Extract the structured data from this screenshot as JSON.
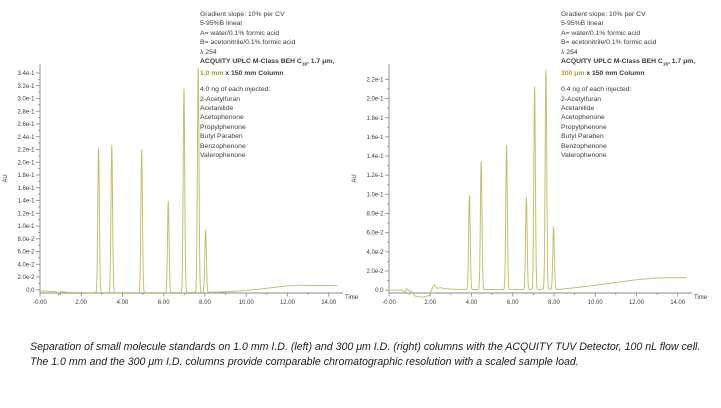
{
  "colors": {
    "trace": "#c3c169",
    "highlight": "#a7a12a",
    "text": "#3c3c3c",
    "axis": "#8a8a8a",
    "caption": "#1e1e1e"
  },
  "charts": [
    {
      "side": "left",
      "conditions": [
        "Gradient slope: 10% per CV",
        "5-95%B linear",
        "A= water/0.1% formic acid",
        "B= acetonitrile/0.1% formic acid",
        "λ 254"
      ],
      "column": {
        "pre": "ACQUITY UPLC M-Class BEH C",
        "sub": "18",
        "post": ", 1.7 μm,",
        "highlight": "1.0 mm",
        "rest": " x 150 mm Column"
      },
      "injection": "4.0 ng of each injected:",
      "analytes": [
        "2-Acetylfuran",
        "Acetanilide",
        "Acetophenone",
        "Propylphenone",
        "Butyl Paraben",
        "Benzophenone",
        "Valerophenone"
      ],
      "chart_data": {
        "type": "line",
        "xlabel": "Time",
        "ylabel": "AU",
        "xlim": [
          0,
          14.45
        ],
        "ylim": [
          -0.005,
          0.354
        ],
        "x_ticks": {
          "values": [
            0,
            2,
            4,
            6,
            8,
            10,
            12,
            14
          ],
          "labels": [
            "-0.00",
            "2.00",
            "4.00",
            "6.00",
            "8.00",
            "10.00",
            "12.00",
            "14.00"
          ],
          "minor": [
            1,
            3,
            5,
            7,
            9,
            11,
            13
          ]
        },
        "y_ticks": {
          "step": 0.02,
          "max": 0.34,
          "labels": [
            "0.0",
            "2.0e-2",
            "4.0e-2",
            "6.0e-2",
            "8.0e-2",
            "1.0e-1",
            "1.2e-1",
            "1.4e-1",
            "1.6e-1",
            "1.8e-1",
            "2.0e-1",
            "2.2e-1",
            "2.4e-1",
            "2.6e-1",
            "2.8e-1",
            "3.0e-1",
            "3.2e-1",
            "3.4e-1"
          ]
        },
        "peak_sigma": 0.038,
        "peaks": [
          {
            "name": "2-Acetylfuran",
            "time": 2.84,
            "height": 0.221
          },
          {
            "name": "Acetanilide",
            "time": 3.48,
            "height": 0.227
          },
          {
            "name": "Acetophenone",
            "time": 4.93,
            "height": 0.219
          },
          {
            "name": "Propylphenone",
            "time": 6.22,
            "height": 0.139
          },
          {
            "name": "Butyl Paraben",
            "time": 6.98,
            "height": 0.315
          },
          {
            "name": "Benzophenone",
            "time": 7.67,
            "height": 0.348
          },
          {
            "name": "Valerophenone",
            "time": 8.03,
            "height": 0.094
          }
        ],
        "baseline": [
          [
            0,
            -0.002
          ],
          [
            0.55,
            -0.0025
          ],
          [
            0.8,
            -0.003
          ],
          [
            0.9,
            -0.0085
          ],
          [
            1.0,
            -0.0025
          ],
          [
            1.3,
            -0.004
          ],
          [
            2.5,
            -0.0045
          ],
          [
            5.0,
            -0.0045
          ],
          [
            8.0,
            -0.004
          ],
          [
            8.8,
            -0.0035
          ],
          [
            9.6,
            -0.002
          ],
          [
            10.5,
            0.0005
          ],
          [
            11.4,
            0.004
          ],
          [
            12.0,
            0.0062
          ],
          [
            12.6,
            0.0072
          ],
          [
            13.4,
            0.0068
          ],
          [
            14.42,
            0.0066
          ]
        ]
      }
    },
    {
      "side": "right",
      "conditions": [
        "Gradient slope: 10% per CV",
        "5-95%B linear",
        "A= water/0.1% formic acid",
        "B= acetonitrile/0.1% formic acid",
        "λ 254"
      ],
      "column": {
        "pre": "ACQUITY UPLC M-Class BEH C",
        "sub": "18",
        "post": ", 1.7 μm,",
        "highlight": "300 μm",
        "rest": " x 150 mm Column"
      },
      "injection": "0.4 ng of each injected:",
      "analytes": [
        "2-Acetylfuran",
        "Acetanilide",
        "Acetophenone",
        "Propylphenone",
        "Butyl Paraben",
        "Benzophenone",
        "Valerophenone"
      ],
      "chart_data": {
        "type": "line",
        "xlabel": "Time",
        "ylabel": "AU",
        "xlim": [
          0,
          14.45
        ],
        "ylim": [
          -0.003,
          0.236
        ],
        "x_ticks": {
          "values": [
            0,
            2,
            4,
            6,
            8,
            10,
            12,
            14
          ],
          "labels": [
            "-0.00",
            "2.00",
            "4.00",
            "6.00",
            "8.00",
            "10.00",
            "12.00",
            "14.00"
          ],
          "minor": [
            1,
            3,
            5,
            7,
            9,
            11,
            13
          ]
        },
        "y_ticks": {
          "step": 0.02,
          "max": 0.22,
          "labels": [
            "0.0",
            "2.0e-2",
            "4.0e-2",
            "6.0e-2",
            "8.0e-2",
            "1.0e-1",
            "1.2e-1",
            "1.4e-1",
            "1.6e-1",
            "1.8e-1",
            "2.0e-1",
            "2.2e-1"
          ]
        },
        "peak_sigma": 0.038,
        "peaks": [
          {
            "name": "2-Acetylfuran",
            "time": 3.9,
            "height": 0.099
          },
          {
            "name": "Acetanilide",
            "time": 4.47,
            "height": 0.134
          },
          {
            "name": "Acetophenone",
            "time": 5.7,
            "height": 0.151
          },
          {
            "name": "Propylphenone",
            "time": 6.66,
            "height": 0.097
          },
          {
            "name": "Butyl Paraben",
            "time": 7.06,
            "height": 0.212
          },
          {
            "name": "Benzophenone",
            "time": 7.61,
            "height": 0.23
          },
          {
            "name": "Valerophenone",
            "time": 7.98,
            "height": 0.066
          }
        ],
        "baseline": [
          [
            0,
            0.0
          ],
          [
            0.7,
            0.0
          ],
          [
            0.78,
            -0.0035
          ],
          [
            0.84,
            0.0015
          ],
          [
            0.95,
            -0.0005
          ],
          [
            1.1,
            -0.0015
          ],
          [
            1.25,
            -0.006
          ],
          [
            1.6,
            -0.0075
          ],
          [
            1.95,
            -0.0055
          ],
          [
            2.1,
            0.002
          ],
          [
            2.2,
            0.0055
          ],
          [
            2.32,
            0.002
          ],
          [
            2.5,
            0.0025
          ],
          [
            2.7,
            0.0015
          ],
          [
            3.2,
            0.0008
          ],
          [
            6.0,
            0.0005
          ],
          [
            8.3,
            0.0008
          ],
          [
            9.0,
            0.0025
          ],
          [
            10.0,
            0.005
          ],
          [
            11.0,
            0.008
          ],
          [
            12.0,
            0.0108
          ],
          [
            12.8,
            0.0125
          ],
          [
            13.5,
            0.013
          ],
          [
            14.42,
            0.013
          ]
        ]
      }
    }
  ],
  "caption": {
    "line1": "Separation of small molecule standards on 1.0 mm I.D. (left) and 300 μm I.D. (right) columns with the ACQUITY TUV Detector, 100 nL flow cell.",
    "line2": "The 1.0 mm and the 300 μm I.D. columns provide comparable chromatographic resolution with a scaled sample load."
  }
}
